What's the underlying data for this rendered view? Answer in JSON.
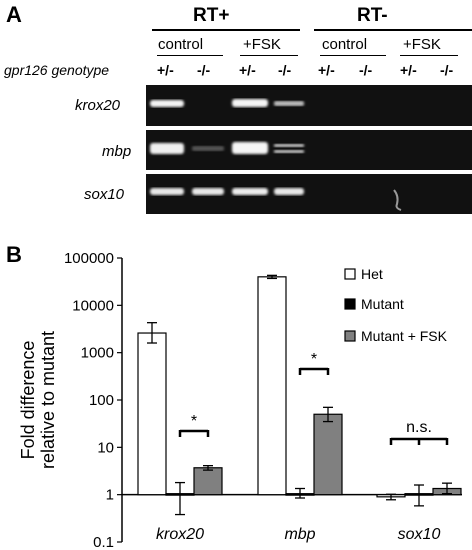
{
  "panelA": {
    "letter": "A",
    "rt_plus": "RT+",
    "rt_minus": "RT-",
    "conditions": [
      "control",
      "+FSK",
      "control",
      "+FSK"
    ],
    "genotype_label": "gpr126 genotype",
    "genotypes": [
      "+/-",
      "-/-",
      "+/-",
      "-/-",
      "+/-",
      "-/-",
      "+/-",
      "-/-"
    ],
    "gels": [
      "krox20",
      "mbp",
      "sox10"
    ]
  },
  "panelB": {
    "letter": "B"
  },
  "chart_data": {
    "type": "bar",
    "categories": [
      "krox20",
      "mbp",
      "sox10"
    ],
    "ylabel": "Fold difference relative to mutant",
    "yscale": "log",
    "ylim": [
      0.1,
      100000
    ],
    "yticks": [
      "0.1",
      "1",
      "10",
      "100",
      "1000",
      "10000",
      "100000"
    ],
    "legend_position": "top-right",
    "series": [
      {
        "name": "Het",
        "color": "#ffffff",
        "values": [
          2600,
          40000,
          0.9
        ],
        "err_low": [
          1600,
          37000,
          0.78
        ],
        "err_high": [
          4300,
          43000,
          1.02
        ]
      },
      {
        "name": "Mutant",
        "color": "#000000",
        "values": [
          1.05,
          1.05,
          1.05
        ],
        "err_low": [
          0.38,
          0.85,
          0.58
        ],
        "err_high": [
          1.8,
          1.35,
          1.6
        ]
      },
      {
        "name": "Mutant + FSK",
        "color": "#808080",
        "values": [
          3.7,
          50,
          1.35
        ],
        "err_low": [
          3.3,
          35,
          1.05
        ],
        "err_high": [
          4.1,
          70,
          1.75
        ]
      }
    ],
    "annotations": [
      "*",
      "*",
      "n.s."
    ]
  }
}
